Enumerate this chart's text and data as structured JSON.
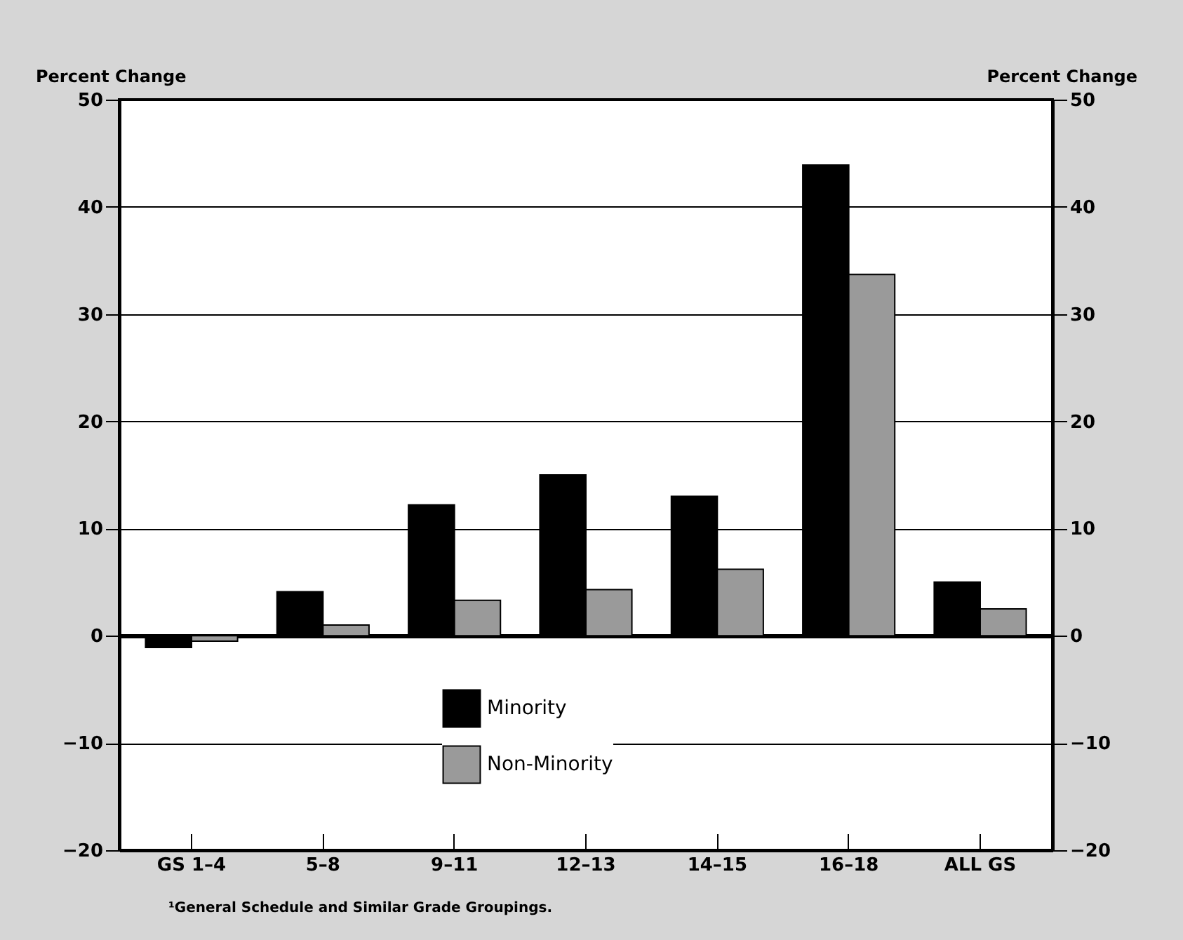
{
  "chart_data": {
    "type": "bar",
    "categories": [
      "GS 1–4",
      "5–8",
      "9–11",
      "12–13",
      "14–15",
      "16–18",
      "ALL GS"
    ],
    "series": [
      {
        "name": "Minority",
        "color": "#000000",
        "values": [
          -1.1,
          4.1,
          12.2,
          15,
          13,
          43.9,
          5
        ]
      },
      {
        "name": "Non-Minority",
        "color": "#9a9a9a",
        "values": [
          -0.5,
          1,
          3.3,
          4.3,
          6.2,
          33.7,
          2.5
        ]
      }
    ],
    "ylabel": "Percent Change",
    "y2label": "Percent Change",
    "ylim": [
      -20,
      50
    ],
    "yticks": [
      -20,
      -10,
      0,
      10,
      20,
      30,
      40,
      50
    ],
    "y2lim": [
      -20,
      50
    ],
    "y2ticks": [
      -20,
      -10,
      0,
      10,
      20,
      30,
      40,
      50
    ],
    "grid": "y",
    "legend": "bottom",
    "annotations": [
      "¹General Schedule and Similar Grade Groupings."
    ]
  }
}
